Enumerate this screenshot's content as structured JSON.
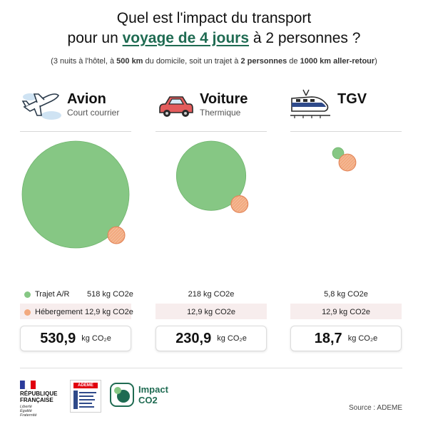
{
  "title": {
    "line1": "Quel est l'impact du transport",
    "line2_pre": "pour un ",
    "line2_highlight": "voyage de 4 jours",
    "line2_post": " à 2 personnes ?"
  },
  "subtitle": {
    "p1": "(3 nuits à l'hôtel, à ",
    "b1": "500 km",
    "p2": " du domicile, soit un trajet à ",
    "b2": "2 personnes",
    "p3": " de ",
    "b3": "1000 km aller-retour",
    "p4": ")"
  },
  "legend": {
    "trajet": "Trajet A/R",
    "hebergement": "Hébergement"
  },
  "colors": {
    "trajet": "#86c784",
    "hebergement": "#f2a97e",
    "accent": "#1f6b52"
  },
  "modes": [
    {
      "name": "Avion",
      "sub": "Court courrier",
      "icon": "airplane-icon",
      "trajet_label": "518 kg CO2e",
      "heberg_label": "12,9 kg CO2e",
      "total": "530,9",
      "unit": "kg CO₂e"
    },
    {
      "name": "Voiture",
      "sub": "Thermique",
      "icon": "car-icon",
      "trajet_label": "218 kg CO2e",
      "heberg_label": "12,9 kg CO2e",
      "total": "230,9",
      "unit": "kg CO₂e"
    },
    {
      "name": "TGV",
      "sub": "",
      "icon": "train-icon",
      "trajet_label": "5,8 kg CO2e",
      "heberg_label": "12,9 kg CO2e",
      "total": "18,7",
      "unit": "kg CO₂e"
    }
  ],
  "chart_data": {
    "type": "bubble",
    "categories": [
      "Avion",
      "Voiture",
      "TGV"
    ],
    "series": [
      {
        "name": "Trajet A/R",
        "values": [
          518,
          218,
          5.8
        ]
      },
      {
        "name": "Hébergement",
        "values": [
          12.9,
          12.9,
          12.9
        ]
      }
    ],
    "totals": [
      530.9,
      230.9,
      18.7
    ],
    "unit": "kg CO2e"
  },
  "footer": {
    "republique_line1": "RÉPUBLIQUE",
    "republique_line2": "FRANÇAISE",
    "motto1": "Liberté",
    "motto2": "Égalité",
    "motto3": "Fraternité",
    "ademe": "ADEME",
    "impact_line1": "Impact",
    "impact_line2": "CO2",
    "source": "Source : ADEME"
  }
}
